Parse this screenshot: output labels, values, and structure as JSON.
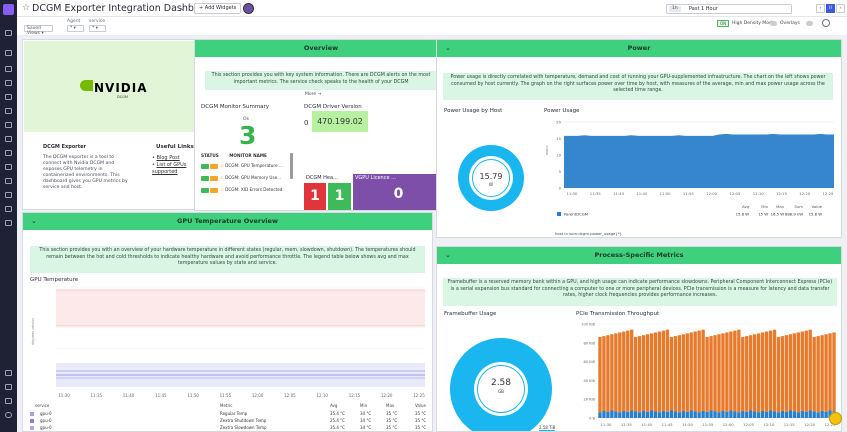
{
  "header": {
    "title": "DCGM Exporter Integration Dashboard",
    "add_widgets": "+ Add Widgets",
    "time_pill": "1h",
    "time_range": "Past 1 Hour",
    "pause": "II",
    "prev": "‹",
    "next": "›"
  },
  "subheader": {
    "vars": [
      {
        "label": "",
        "value": "Saved Views ▾"
      },
      {
        "label": "Agent",
        "value": "* ▾"
      },
      {
        "label": "service",
        "value": "* ▾"
      }
    ],
    "high_density_toggle": "ON",
    "high_density_label": "High Density Mode",
    "overlays_label": "Overlays"
  },
  "nvidia": {
    "logo": "NVIDIA",
    "logo_sub": "DCGM",
    "about_title": "DCGM Exporter",
    "about_text": "The DCGM exporter is a tool to connect with Nvidia DCGM and exposes GPU telemetry in containerized environments. This dashboard gives you GPU metrics by service and host.",
    "links_title": "Useful Links",
    "links": [
      "Blog Post",
      "List of GPUs supported"
    ]
  },
  "overview": {
    "header": "Overview",
    "note": "This section provides you with key system information. There are DCGM alerts on the most important metrics. The service check speaks to the health of your DCGM",
    "more": "More →",
    "monitor_title": "DCGM Monitor Summary",
    "ok_label": "Ok",
    "ok_count": "3",
    "driver_title": "DCGM Driver Version",
    "driver_zero": "0",
    "driver_version": "470.199.02",
    "col_status": "STATUS",
    "col_monitor": "MONITOR NAME",
    "monitors": [
      "DCGM: GPU Temperature ...",
      "DCGM: GPU Memory Use...",
      "DCGM: XID Errors Detected"
    ],
    "health_title": "DCGM Hea...",
    "health_values": [
      "1",
      "1"
    ],
    "vgpu_title": "VGPU Licence ...",
    "vgpu_value": "0"
  },
  "power": {
    "header": "Power",
    "note": "Power usage is directly correlated with temperature, demand and cost of running your GPU-supplemented infrastructure. The chart on the left shows power consumed by host currently. The graph on the right surfaces power over time by host, with measures of the average, min and max power usage across the selected time range.",
    "by_host_title": "Power Usage by Host",
    "gauge_value": "15.79",
    "gauge_unit": "W",
    "chart_title": "Power Usage",
    "xticks": [
      "11:30",
      "11:35",
      "11:40",
      "11:45",
      "11:50",
      "11:55",
      "12:00",
      "12:05",
      "12:10",
      "12:15",
      "12:20",
      "12:25"
    ],
    "yticks": [
      "20",
      "15",
      "10",
      "5",
      "0"
    ],
    "legend_query": "host in sum:dcgm.power_usage{*}",
    "legend_cols": [
      "Avg",
      "Min",
      "Max",
      "Sum",
      "Value"
    ],
    "legend_row": {
      "name": "ParentDCGM",
      "avg": "15.8 W",
      "min": "15 W",
      "max": "16.5 W",
      "sum": "888.9 kW",
      "value": "15.8 W"
    }
  },
  "gpu_temp": {
    "header": "GPU Temperature Overview",
    "note": "This section provides you with an overview of your hardware temperature in different states (regular, mem, slowdown, shutdown). The temperatures should remain between the hot and cold thresholds to indicate healthy hardware and avoid performance throttle. The legend table below shows avg and max temperature values by state and service.",
    "chart_title": "GPU Temperature",
    "xticks": [
      "11:30",
      "11:35",
      "11:40",
      "11:45",
      "11:50",
      "11:55",
      "12:00",
      "12:05",
      "12:10",
      "12:15",
      "12:20",
      "12:25"
    ],
    "legend_cols": [
      "service",
      "Metric",
      "Avg",
      "Min",
      "Max",
      "Value"
    ],
    "legend_rows": [
      {
        "service": "gpu-0",
        "metric": "Regular Temp",
        "avg": "35.4 °C",
        "min": "34 °C",
        "max": "35 °C",
        "value": "35 °C"
      },
      {
        "service": "gpu-0",
        "metric": "Zextra Shutdown Temp",
        "avg": "25.4 °C",
        "min": "34 °C",
        "max": "35 °C",
        "value": "35 °C"
      },
      {
        "service": "gpu-0",
        "metric": "Zextra Slowdown Temp",
        "avg": "35.4 °C",
        "min": "34 °C",
        "max": "35 °C",
        "value": "35 °C"
      }
    ]
  },
  "process": {
    "header": "Process-Specific Metrics",
    "note": "Framebuffer is a reserved memory bank within a GPU, and high usage can indicate performance slowdowns. Peripheral Component Interconnect Express (PCIe) is a serial expansion bus standard for connecting a computer to one or more peripheral devices. PCIe transmission is a measure for latency and data transfer rates, higher clock frequencies provides performance increases.",
    "fb_title": "Framebuffer Usage",
    "fb_value": "2.58",
    "fb_unit": "GB",
    "fb_total": "2.58 TiB",
    "pcie_title": "PCIe Transmission Throughput",
    "xticks": [
      "11:30",
      "11:35",
      "11:40",
      "11:45",
      "11:50",
      "11:55",
      "12:00",
      "12:05",
      "12:10",
      "12:15",
      "12:20",
      "12:25"
    ],
    "yticks": [
      "100 KiB",
      "80 KiB",
      "60 KiB",
      "40 KiB",
      "20 KiB",
      "0 B"
    ]
  },
  "colors": {
    "green_header": "#3fd07e",
    "accent_blue": "#19b6f0",
    "bar_blue": "#2a7fc9",
    "bar_orange": "#e87a2c",
    "ok_green": "#3fba5a",
    "alert_red": "#e0353a",
    "purple": "#7e4fa8"
  }
}
